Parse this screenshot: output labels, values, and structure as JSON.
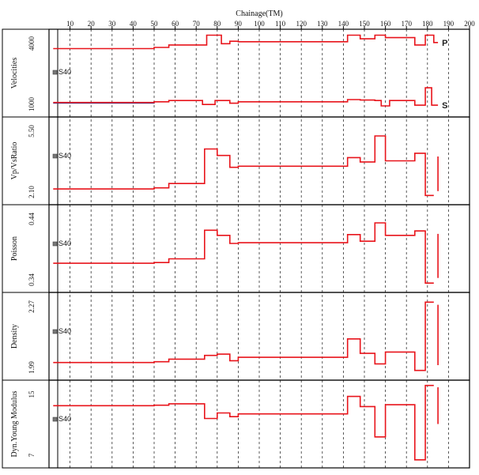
{
  "chart_data": {
    "type": "line",
    "xlabel": "Chainage(TM)",
    "xlim": [
      0,
      200
    ],
    "x_ticks": [
      10,
      20,
      30,
      40,
      50,
      60,
      70,
      80,
      90,
      100,
      110,
      120,
      130,
      140,
      150,
      160,
      170,
      180,
      190,
      200
    ],
    "grid": "vertical dashed",
    "colors": {
      "series": "#e8141b",
      "s_wave_overlay": "#1f3a9c",
      "frame": "#000000",
      "marker": "#777777"
    },
    "panels": [
      {
        "ylabel": "Velocities",
        "ymax_label": "4000",
        "ymin_label": "1000",
        "ylim": [
          1000,
          4000
        ],
        "marker_label": "S40",
        "series": [
          {
            "name": "P",
            "x": [
              2,
              50,
              50,
              57,
              57,
              75,
              75,
              82,
              82,
              86,
              86,
              90,
              90,
              142,
              142,
              148,
              148,
              155,
              155,
              160,
              160,
              174,
              174,
              179,
              179,
              183,
              183,
              185
            ],
            "y": [
              3500,
              3500,
              3550,
              3550,
              3650,
              3650,
              4050,
              4050,
              3700,
              3700,
              3800,
              3800,
              3780,
              3780,
              4050,
              4050,
              3900,
              3900,
              4050,
              4050,
              3950,
              3950,
              3650,
              3650,
              4050,
              4050,
              3750,
              3750
            ]
          },
          {
            "name": "S",
            "x": [
              2,
              50,
              50,
              57,
              57,
              73,
              73,
              79,
              79,
              86,
              86,
              90,
              90,
              142,
              142,
              148,
              148,
              155,
              155,
              158,
              158,
              162,
              162,
              174,
              174,
              179,
              179,
              182,
              182,
              185
            ],
            "y": [
              1300,
              1300,
              1330,
              1330,
              1380,
              1380,
              1220,
              1220,
              1380,
              1380,
              1270,
              1270,
              1330,
              1330,
              1420,
              1420,
              1400,
              1400,
              1380,
              1380,
              1160,
              1160,
              1380,
              1380,
              1190,
              1190,
              1900,
              1900,
              1190,
              1190
            ]
          }
        ]
      },
      {
        "ylabel": "Vp/VsRatio",
        "ymax_label": "5.50",
        "ymin_label": "2.10",
        "ylim": [
          2.1,
          5.5
        ],
        "marker_label": "S40",
        "series": [
          {
            "name": "",
            "x": [
              2,
              50,
              50,
              57,
              57,
              74,
              74,
              80,
              80,
              86,
              86,
              90,
              90,
              142,
              142,
              148,
              148,
              155,
              155,
              160,
              160,
              174,
              174,
              179,
              179,
              183
            ],
            "y": [
              2.5,
              2.5,
              2.55,
              2.55,
              2.75,
              2.75,
              4.35,
              4.35,
              4.05,
              4.05,
              3.5,
              3.5,
              3.55,
              3.55,
              3.95,
              3.95,
              3.75,
              3.75,
              4.95,
              4.95,
              3.8,
              3.8,
              4.15,
              4.15,
              2.2,
              2.2
            ]
          },
          {
            "name": "",
            "x": [
              185,
              185
            ],
            "y": [
              2.4,
              4.0
            ]
          }
        ]
      },
      {
        "ylabel": "Poisson",
        "ymax_label": "0.44",
        "ymin_label": "0.34",
        "ylim": [
          0.34,
          0.44
        ],
        "marker_label": "S40",
        "series": [
          {
            "name": "",
            "x": [
              2,
              50,
              50,
              57,
              57,
              74,
              74,
              80,
              80,
              86,
              86,
              90,
              90,
              142,
              142,
              148,
              148,
              155,
              155,
              160,
              160,
              174,
              174,
              179,
              179,
              183
            ],
            "y": [
              0.37,
              0.37,
              0.371,
              0.371,
              0.376,
              0.376,
              0.415,
              0.415,
              0.408,
              0.408,
              0.397,
              0.397,
              0.398,
              0.398,
              0.409,
              0.409,
              0.4,
              0.4,
              0.425,
              0.425,
              0.408,
              0.408,
              0.414,
              0.414,
              0.343,
              0.343
            ]
          },
          {
            "name": "",
            "x": [
              185,
              185
            ],
            "y": [
              0.35,
              0.41
            ]
          }
        ]
      },
      {
        "ylabel": "Density",
        "ymax_label": "2.27",
        "ymin_label": "1.99",
        "ylim": [
          1.99,
          2.27
        ],
        "marker_label": "S40",
        "series": [
          {
            "name": "",
            "x": [
              2,
              50,
              50,
              57,
              57,
              74,
              74,
              80,
              80,
              86,
              86,
              90,
              90,
              142,
              142,
              148,
              148,
              155,
              155,
              160,
              160,
              174,
              174,
              179,
              179,
              183
            ],
            "y": [
              2.03,
              2.03,
              2.033,
              2.033,
              2.043,
              2.043,
              2.057,
              2.057,
              2.062,
              2.062,
              2.037,
              2.037,
              2.05,
              2.05,
              2.12,
              2.12,
              2.065,
              2.065,
              2.025,
              2.025,
              2.07,
              2.07,
              2.0,
              2.0,
              2.26,
              2.26
            ]
          },
          {
            "name": "",
            "x": [
              185,
              185
            ],
            "y": [
              2.02,
              2.25
            ]
          }
        ]
      },
      {
        "ylabel": "Dyn.Young Modulus",
        "ymax_label": "15",
        "ymin_label": "7",
        "ylim": [
          7,
          15
        ],
        "marker_label": "S40",
        "series": [
          {
            "name": "",
            "x": [
              2,
              50,
              50,
              57,
              57,
              74,
              74,
              80,
              80,
              86,
              86,
              90,
              90,
              142,
              142,
              148,
              148,
              155,
              155,
              160,
              160,
              174,
              174,
              179,
              179,
              183
            ],
            "y": [
              13.0,
              13.0,
              13.05,
              13.05,
              13.2,
              13.2,
              11.6,
              11.6,
              12.2,
              12.2,
              11.8,
              11.8,
              12.1,
              12.1,
              14.0,
              14.0,
              12.9,
              12.9,
              9.6,
              9.6,
              13.1,
              13.1,
              7.1,
              7.1,
              15.2,
              15.2
            ]
          },
          {
            "name": "",
            "x": [
              185,
              185
            ],
            "y": [
              11.0,
              15.0
            ]
          }
        ]
      }
    ]
  }
}
